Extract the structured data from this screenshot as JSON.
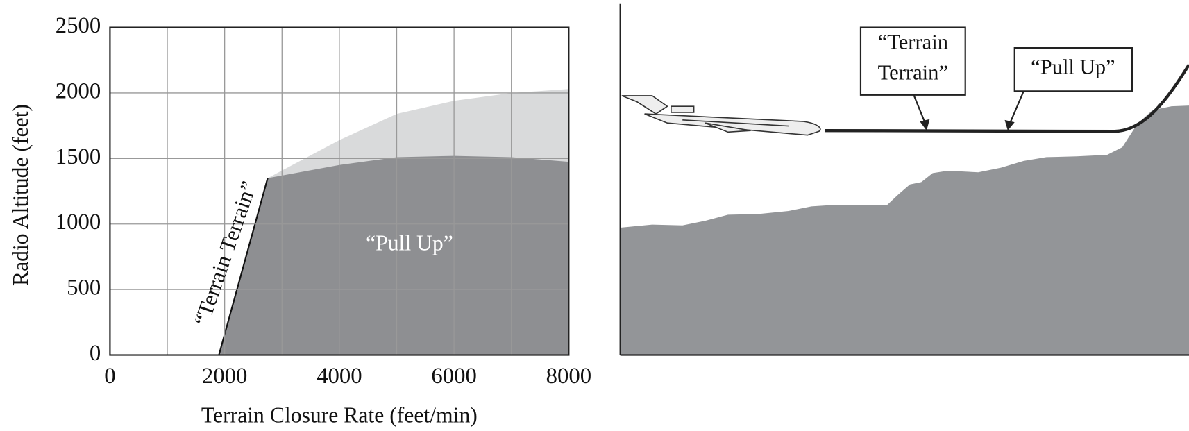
{
  "chart_data": {
    "type": "area",
    "xlabel": "Terrain Closure Rate (feet/min)",
    "ylabel": "Radio Altitude (feet)",
    "xlim": [
      0,
      8000
    ],
    "ylim": [
      0,
      2500
    ],
    "xticks": [
      0,
      2000,
      4000,
      6000,
      8000
    ],
    "yticks": [
      0,
      500,
      1000,
      1500,
      2000,
      2500
    ],
    "xgrid": [
      1000,
      2000,
      3000,
      4000,
      5000,
      6000,
      7000
    ],
    "grid": true,
    "series": [
      {
        "name": "“Terrain Terrain”",
        "color": "#d9dadb",
        "x": [
          1900,
          2750,
          4000,
          5000,
          6000,
          7000,
          8000
        ],
        "values": [
          0,
          1350,
          1640,
          1840,
          1940,
          2000,
          2030
        ]
      },
      {
        "name": "“Pull Up”",
        "color": "#8e8f92",
        "x": [
          1900,
          2750,
          4000,
          5000,
          6000,
          7000,
          8000
        ],
        "values": [
          0,
          1350,
          1450,
          1510,
          1520,
          1510,
          1475
        ]
      }
    ]
  },
  "diagram": {
    "callouts": [
      [
        "“Terrain",
        "Terrain”"
      ],
      [
        "“Pull Up”"
      ]
    ]
  }
}
